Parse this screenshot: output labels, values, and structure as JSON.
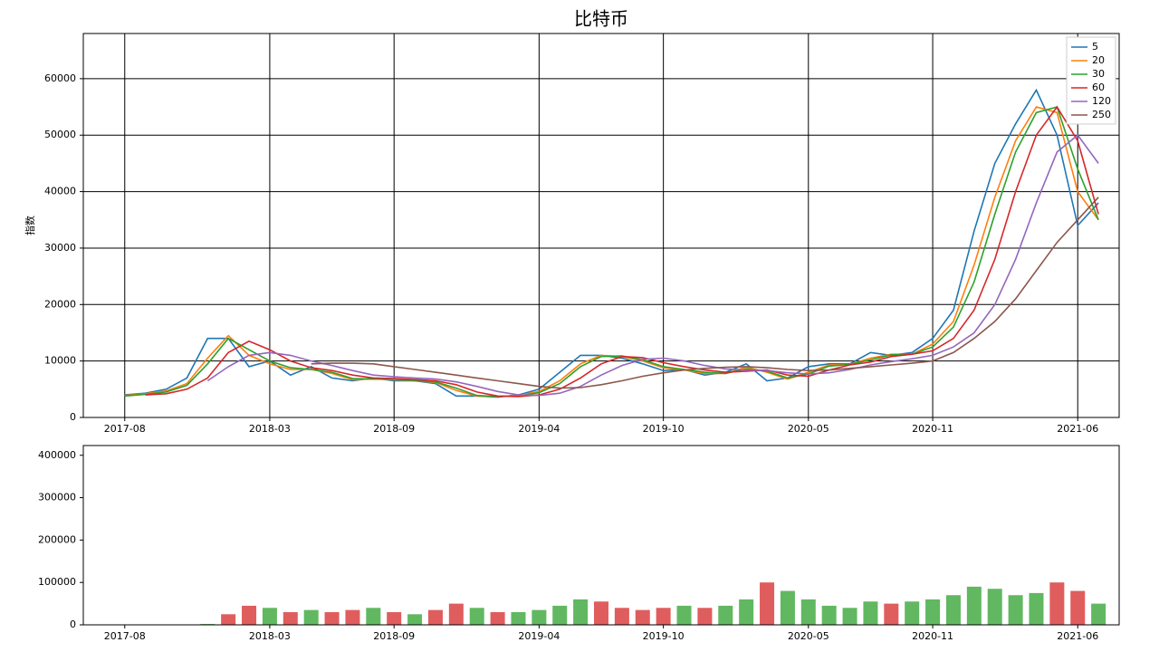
{
  "chart_data": [
    {
      "type": "line",
      "title": "比特币",
      "ylabel": "指数",
      "x": [
        "2017-08",
        "2017-09",
        "2017-10",
        "2017-11",
        "2017-12",
        "2018-01",
        "2018-02",
        "2018-03",
        "2018-04",
        "2018-05",
        "2018-06",
        "2018-07",
        "2018-08",
        "2018-09",
        "2018-10",
        "2018-11",
        "2018-12",
        "2019-01",
        "2019-02",
        "2019-03",
        "2019-04",
        "2019-05",
        "2019-06",
        "2019-07",
        "2019-08",
        "2019-09",
        "2019-10",
        "2019-11",
        "2019-12",
        "2020-01",
        "2020-02",
        "2020-03",
        "2020-04",
        "2020-05",
        "2020-06",
        "2020-07",
        "2020-08",
        "2020-09",
        "2020-10",
        "2020-11",
        "2020-12",
        "2021-01",
        "2021-02",
        "2021-03",
        "2021-04",
        "2021-05",
        "2021-06",
        "2021-07"
      ],
      "xlim": [
        "2017-06",
        "2021-08"
      ],
      "xticks": [
        "2017-08",
        "2018-03",
        "2018-09",
        "2019-04",
        "2019-10",
        "2020-05",
        "2020-11",
        "2021-06"
      ],
      "ylim": [
        0,
        68000
      ],
      "yticks": [
        0,
        10000,
        20000,
        30000,
        40000,
        50000,
        60000
      ],
      "grid": true,
      "legend": "upper right",
      "series": [
        {
          "name": "5",
          "color": "#1f77b4",
          "values": [
            4000,
            4300,
            5000,
            7000,
            14000,
            14000,
            9000,
            10000,
            7500,
            9000,
            7000,
            6500,
            7000,
            6500,
            6500,
            6000,
            3800,
            3800,
            3600,
            4000,
            5000,
            8000,
            11000,
            11000,
            10500,
            9500,
            8300,
            8500,
            7500,
            8000,
            9500,
            6500,
            7000,
            9000,
            9500,
            9500,
            11500,
            11000,
            11500,
            14000,
            19000,
            33000,
            45000,
            52000,
            58000,
            50000,
            34000,
            38000
          ]
        },
        {
          "name": "20",
          "color": "#ff7f0e",
          "values": [
            3900,
            4200,
            4700,
            6000,
            10500,
            14500,
            11000,
            9500,
            8500,
            8500,
            7800,
            6700,
            6800,
            6700,
            6500,
            6200,
            4800,
            3800,
            3700,
            3900,
            4600,
            6500,
            9500,
            11000,
            10800,
            10000,
            8800,
            8400,
            7800,
            7800,
            8900,
            8000,
            6800,
            8000,
            9300,
            9400,
            10500,
            11200,
            11200,
            13000,
            17000,
            27000,
            39000,
            49000,
            55000,
            54000,
            40000,
            35000
          ]
        },
        {
          "name": "30",
          "color": "#2ca02c",
          "values": [
            3800,
            4100,
            4500,
            5700,
            9500,
            14000,
            12000,
            10000,
            8800,
            8500,
            8000,
            6900,
            6800,
            6800,
            6500,
            6300,
            5200,
            3900,
            3700,
            3800,
            4400,
            6000,
            9000,
            10800,
            10900,
            10200,
            9000,
            8500,
            8000,
            7800,
            8600,
            8200,
            7000,
            7700,
            9100,
            9400,
            10200,
            11100,
            11200,
            12500,
            16000,
            24000,
            36000,
            47000,
            54000,
            55000,
            44000,
            35000
          ]
        },
        {
          "name": "60",
          "color": "#d62728",
          "values": [
            null,
            4000,
            4200,
            5000,
            7000,
            11500,
            13500,
            12000,
            10000,
            8800,
            8300,
            7500,
            7000,
            6900,
            6700,
            6500,
            5800,
            4500,
            3800,
            3700,
            4000,
            5000,
            7000,
            9500,
            10800,
            10600,
            9700,
            9000,
            8400,
            8000,
            8200,
            8400,
            7500,
            7300,
            8400,
            9300,
            9800,
            10800,
            11200,
            11800,
            14000,
            19000,
            28000,
            40000,
            50000,
            55000,
            49000,
            36000
          ]
        },
        {
          "name": "120",
          "color": "#9467bd",
          "values": [
            null,
            null,
            null,
            null,
            6500,
            9000,
            11000,
            11500,
            11000,
            10000,
            9200,
            8300,
            7500,
            7200,
            7000,
            6800,
            6300,
            5500,
            4600,
            4000,
            3900,
            4300,
            5500,
            7500,
            9200,
            10300,
            10500,
            10000,
            9200,
            8600,
            8400,
            8300,
            7900,
            7700,
            7900,
            8500,
            9300,
            9900,
            10400,
            11000,
            12500,
            15000,
            20000,
            28000,
            38000,
            47000,
            50000,
            45000
          ]
        },
        {
          "name": "250",
          "color": "#8c564b",
          "values": [
            null,
            null,
            null,
            null,
            null,
            null,
            null,
            null,
            null,
            9500,
            9600,
            9600,
            9500,
            9000,
            8500,
            8000,
            7500,
            7000,
            6500,
            6000,
            5500,
            5200,
            5300,
            5800,
            6500,
            7300,
            7900,
            8400,
            8700,
            8900,
            9000,
            8800,
            8500,
            8300,
            8400,
            8700,
            9000,
            9300,
            9600,
            10000,
            11500,
            14000,
            17000,
            21000,
            26000,
            31000,
            35000,
            39000
          ]
        }
      ]
    },
    {
      "type": "bar",
      "x": [
        "2017-08",
        "2017-09",
        "2017-10",
        "2017-11",
        "2017-12",
        "2018-01",
        "2018-02",
        "2018-03",
        "2018-04",
        "2018-05",
        "2018-06",
        "2018-07",
        "2018-08",
        "2018-09",
        "2018-10",
        "2018-11",
        "2018-12",
        "2019-01",
        "2019-02",
        "2019-03",
        "2019-04",
        "2019-05",
        "2019-06",
        "2019-07",
        "2019-08",
        "2019-09",
        "2019-10",
        "2019-11",
        "2019-12",
        "2020-01",
        "2020-02",
        "2020-03",
        "2020-04",
        "2020-05",
        "2020-06",
        "2020-07",
        "2020-08",
        "2020-09",
        "2020-10",
        "2020-11",
        "2020-12",
        "2021-01",
        "2021-02",
        "2021-03",
        "2021-04",
        "2021-05",
        "2021-06",
        "2021-07"
      ],
      "xlim": [
        "2017-06",
        "2021-08"
      ],
      "xticks": [
        "2017-08",
        "2018-03",
        "2018-09",
        "2019-04",
        "2019-10",
        "2020-05",
        "2020-11",
        "2021-06"
      ],
      "ylim": [
        0,
        423000
      ],
      "yticks": [
        0,
        100000,
        200000,
        300000,
        400000
      ],
      "values": [
        1000,
        1000,
        1000,
        1000,
        2000,
        25000,
        45000,
        40000,
        30000,
        35000,
        30000,
        35000,
        40000,
        30000,
        25000,
        35000,
        50000,
        40000,
        30000,
        30000,
        35000,
        45000,
        60000,
        55000,
        40000,
        35000,
        40000,
        45000,
        40000,
        45000,
        60000,
        100000,
        80000,
        60000,
        45000,
        40000,
        55000,
        50000,
        55000,
        60000,
        70000,
        90000,
        85000,
        70000,
        75000,
        100000,
        80000,
        50000
      ],
      "colors": [
        "#2ca02c",
        "#2ca02c",
        "#2ca02c",
        "#2ca02c",
        "#2ca02c",
        "#d62728",
        "#d62728",
        "#2ca02c",
        "#d62728",
        "#2ca02c",
        "#d62728",
        "#d62728",
        "#2ca02c",
        "#d62728",
        "#2ca02c",
        "#d62728",
        "#d62728",
        "#2ca02c",
        "#d62728",
        "#2ca02c",
        "#2ca02c",
        "#2ca02c",
        "#2ca02c",
        "#d62728",
        "#d62728",
        "#d62728",
        "#d62728",
        "#2ca02c",
        "#d62728",
        "#2ca02c",
        "#2ca02c",
        "#d62728",
        "#2ca02c",
        "#2ca02c",
        "#2ca02c",
        "#2ca02c",
        "#2ca02c",
        "#d62728",
        "#2ca02c",
        "#2ca02c",
        "#2ca02c",
        "#2ca02c",
        "#2ca02c",
        "#2ca02c",
        "#2ca02c",
        "#d62728",
        "#d62728",
        "#2ca02c"
      ]
    }
  ]
}
